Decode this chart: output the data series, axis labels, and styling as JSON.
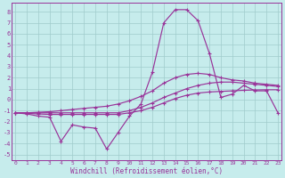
{
  "bg_color": "#c6ecec",
  "grid_color": "#a0cccc",
  "line_color": "#993399",
  "xlabel": "Windchill (Refroidissement éolien,°C)",
  "xlim_min": -0.3,
  "xlim_max": 23.3,
  "ylim_min": -5.5,
  "ylim_max": 8.8,
  "xticks": [
    0,
    1,
    2,
    3,
    4,
    5,
    6,
    7,
    8,
    9,
    10,
    11,
    12,
    13,
    14,
    15,
    16,
    17,
    18,
    19,
    20,
    21,
    22,
    23
  ],
  "yticks": [
    -5,
    -4,
    -3,
    -2,
    -1,
    0,
    1,
    2,
    3,
    4,
    5,
    6,
    7,
    8
  ],
  "hours": [
    0,
    1,
    2,
    3,
    4,
    5,
    6,
    7,
    8,
    9,
    10,
    11,
    12,
    13,
    14,
    15,
    16,
    17,
    18,
    19,
    20,
    21,
    22,
    23
  ],
  "line_jagged": [
    -1.2,
    -1.3,
    -1.5,
    -1.6,
    -3.8,
    -2.3,
    -2.5,
    -2.6,
    -4.5,
    -3.0,
    -1.5,
    -0.4,
    2.5,
    7.0,
    8.2,
    8.2,
    7.2,
    4.2,
    0.2,
    0.5,
    1.3,
    0.8,
    0.8,
    -1.2
  ],
  "line_flat": [
    -1.2,
    -1.25,
    -1.3,
    -1.35,
    -1.35,
    -1.35,
    -1.35,
    -1.35,
    -1.35,
    -1.35,
    -1.2,
    -1.0,
    -0.7,
    -0.3,
    0.1,
    0.4,
    0.6,
    0.7,
    0.75,
    0.8,
    0.85,
    0.88,
    0.9,
    0.9
  ],
  "line_slope1": [
    -1.2,
    -1.2,
    -1.2,
    -1.2,
    -1.2,
    -1.2,
    -1.2,
    -1.2,
    -1.2,
    -1.2,
    -1.0,
    -0.7,
    -0.3,
    0.2,
    0.6,
    1.0,
    1.3,
    1.5,
    1.6,
    1.6,
    1.5,
    1.4,
    1.3,
    1.2
  ],
  "line_slope2": [
    -1.2,
    -1.2,
    -1.15,
    -1.1,
    -1.0,
    -0.9,
    -0.8,
    -0.7,
    -0.6,
    -0.4,
    -0.1,
    0.3,
    0.8,
    1.5,
    2.0,
    2.3,
    2.4,
    2.3,
    2.0,
    1.8,
    1.7,
    1.5,
    1.4,
    1.3
  ]
}
